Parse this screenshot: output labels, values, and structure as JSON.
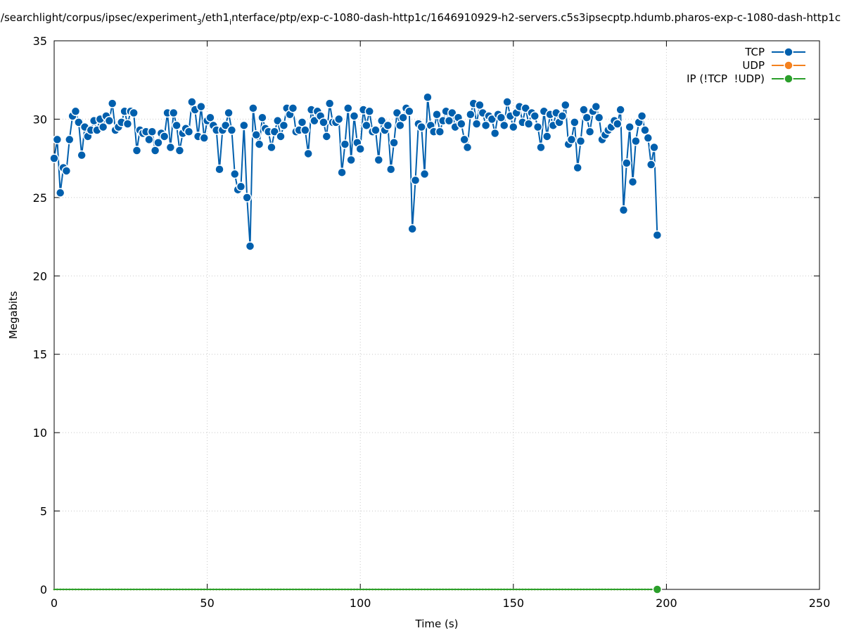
{
  "chart_data": {
    "type": "line",
    "title": [
      "/searchlight/corpus/ipsec/experiment",
      "3",
      "/eth1",
      "i",
      "nterface/ptp/exp-c-1080-dash-http1c/1646910929-h2-servers.c5s3ipsecptp.hdumb.pharos-exp-c-1080-dash-http1c"
    ],
    "xlabel": "Time (s)",
    "ylabel": "Megabits",
    "xlim": [
      0,
      250
    ],
    "xticks": [
      0,
      50,
      100,
      150,
      200,
      250
    ],
    "ylim": [
      0,
      35
    ],
    "yticks": [
      0,
      5,
      10,
      15,
      20,
      25,
      30,
      35
    ],
    "grid": true,
    "legend": "top-right",
    "x": [
      0,
      1,
      2,
      3,
      4,
      5,
      6,
      7,
      8,
      9,
      10,
      11,
      12,
      13,
      14,
      15,
      16,
      17,
      18,
      19,
      20,
      21,
      22,
      23,
      24,
      25,
      26,
      27,
      28,
      29,
      30,
      31,
      32,
      33,
      34,
      35,
      36,
      37,
      38,
      39,
      40,
      41,
      42,
      43,
      44,
      45,
      46,
      47,
      48,
      49,
      50,
      51,
      52,
      53,
      54,
      55,
      56,
      57,
      58,
      59,
      60,
      61,
      62,
      63,
      64,
      65,
      66,
      67,
      68,
      69,
      70,
      71,
      72,
      73,
      74,
      75,
      76,
      77,
      78,
      79,
      80,
      81,
      82,
      83,
      84,
      85,
      86,
      87,
      88,
      89,
      90,
      91,
      92,
      93,
      94,
      95,
      96,
      97,
      98,
      99,
      100,
      101,
      102,
      103,
      104,
      105,
      106,
      107,
      108,
      109,
      110,
      111,
      112,
      113,
      114,
      115,
      116,
      117,
      118,
      119,
      120,
      121,
      122,
      123,
      124,
      125,
      126,
      127,
      128,
      129,
      130,
      131,
      132,
      133,
      134,
      135,
      136,
      137,
      138,
      139,
      140,
      141,
      142,
      143,
      144,
      145,
      146,
      147,
      148,
      149,
      150,
      151,
      152,
      153,
      154,
      155,
      156,
      157,
      158,
      159,
      160,
      161,
      162,
      163,
      164,
      165,
      166,
      167,
      168,
      169,
      170,
      171,
      172,
      173,
      174,
      175,
      176,
      177,
      178,
      179,
      180,
      181,
      182,
      183,
      184,
      185,
      186,
      187,
      188,
      189,
      190,
      191,
      192,
      193,
      194,
      195,
      196,
      197
    ],
    "series": [
      {
        "name": "TCP",
        "color": "#005fad",
        "values": [
          27.5,
          28.7,
          25.3,
          26.9,
          26.7,
          28.7,
          30.2,
          30.5,
          29.8,
          27.7,
          29.5,
          28.9,
          29.3,
          29.9,
          29.3,
          30.0,
          29.5,
          30.2,
          29.9,
          31.0,
          29.3,
          29.5,
          29.8,
          30.5,
          29.7,
          30.5,
          30.4,
          28.0,
          29.3,
          29.1,
          29.2,
          28.7,
          29.2,
          28.0,
          28.5,
          29.1,
          28.9,
          30.4,
          28.2,
          30.4,
          29.6,
          28.0,
          29.1,
          29.4,
          29.2,
          31.1,
          30.6,
          28.9,
          30.8,
          28.8,
          29.9,
          30.1,
          29.6,
          29.3,
          26.8,
          29.3,
          29.6,
          30.4,
          29.3,
          26.5,
          25.5,
          25.7,
          29.6,
          25.0,
          21.9,
          30.7,
          29.0,
          28.4,
          30.1,
          29.4,
          29.2,
          28.2,
          29.2,
          29.9,
          28.9,
          29.6,
          30.7,
          30.3,
          30.7,
          29.2,
          29.3,
          29.8,
          29.3,
          27.8,
          30.6,
          29.9,
          30.5,
          30.2,
          29.8,
          28.9,
          31.0,
          29.8,
          29.8,
          30.0,
          26.6,
          28.4,
          30.7,
          27.4,
          30.2,
          28.5,
          28.1,
          30.6,
          29.6,
          30.5,
          29.2,
          29.3,
          27.4,
          29.9,
          29.3,
          29.6,
          26.8,
          28.5,
          30.4,
          29.6,
          30.1,
          30.7,
          30.5,
          23.0,
          26.1,
          29.7,
          29.5,
          26.5,
          31.4,
          29.6,
          29.2,
          30.3,
          29.2,
          29.9,
          30.5,
          29.9,
          30.4,
          29.5,
          30.1,
          29.7,
          28.7,
          28.2,
          30.3,
          31.0,
          29.7,
          30.9,
          30.4,
          29.6,
          30.2,
          30.0,
          29.1,
          30.3,
          30.1,
          29.6,
          31.1,
          30.2,
          29.5,
          30.4,
          30.8,
          29.8,
          30.7,
          29.7,
          30.4,
          30.2,
          29.5,
          28.2,
          30.5,
          28.9,
          30.3,
          29.6,
          30.4,
          29.8,
          30.2,
          30.9,
          28.4,
          28.7,
          29.8,
          26.9,
          28.6,
          30.6,
          30.1,
          29.2,
          30.5,
          30.8,
          30.1,
          28.7,
          29.0,
          29.3,
          29.5,
          29.9,
          29.7,
          30.6,
          24.2,
          27.2,
          29.5,
          26.0,
          28.6,
          29.8,
          30.2,
          29.3,
          28.8,
          27.1,
          28.2,
          22.6
        ]
      },
      {
        "name": "UDP",
        "color": "#f4811e",
        "values": [
          0,
          0,
          0,
          0,
          0,
          0,
          0,
          0,
          0,
          0,
          0,
          0,
          0,
          0,
          0,
          0,
          0,
          0,
          0,
          0,
          0,
          0,
          0,
          0,
          0,
          0,
          0,
          0,
          0,
          0,
          0,
          0,
          0,
          0,
          0,
          0,
          0,
          0,
          0,
          0,
          0,
          0,
          0,
          0,
          0,
          0,
          0,
          0,
          0,
          0,
          0,
          0,
          0,
          0,
          0,
          0,
          0,
          0,
          0,
          0,
          0,
          0,
          0,
          0,
          0,
          0,
          0,
          0,
          0,
          0,
          0,
          0,
          0,
          0,
          0,
          0,
          0,
          0,
          0,
          0,
          0,
          0,
          0,
          0,
          0,
          0,
          0,
          0,
          0,
          0,
          0,
          0,
          0,
          0,
          0,
          0,
          0,
          0,
          0,
          0,
          0,
          0,
          0,
          0,
          0,
          0,
          0,
          0,
          0,
          0,
          0,
          0,
          0,
          0,
          0,
          0,
          0,
          0,
          0,
          0,
          0,
          0,
          0,
          0,
          0,
          0,
          0,
          0,
          0,
          0,
          0,
          0,
          0,
          0,
          0,
          0,
          0,
          0,
          0,
          0,
          0,
          0,
          0,
          0,
          0,
          0,
          0,
          0,
          0,
          0,
          0,
          0,
          0,
          0,
          0,
          0,
          0,
          0,
          0,
          0,
          0,
          0,
          0,
          0,
          0,
          0,
          0,
          0,
          0,
          0,
          0,
          0,
          0,
          0,
          0,
          0,
          0,
          0,
          0,
          0,
          0,
          0,
          0,
          0,
          0,
          0,
          0,
          0,
          0,
          0,
          0,
          0,
          0,
          0,
          0,
          0,
          0,
          0
        ]
      },
      {
        "name": "IP (!TCP  !UDP)",
        "color": "#2b9f2b",
        "values": [
          0,
          0,
          0,
          0,
          0,
          0,
          0,
          0,
          0,
          0,
          0,
          0,
          0,
          0,
          0,
          0,
          0,
          0,
          0,
          0,
          0,
          0,
          0,
          0,
          0,
          0,
          0,
          0,
          0,
          0,
          0,
          0,
          0,
          0,
          0,
          0,
          0,
          0,
          0,
          0,
          0,
          0,
          0,
          0,
          0,
          0,
          0,
          0,
          0,
          0,
          0,
          0,
          0,
          0,
          0,
          0,
          0,
          0,
          0,
          0,
          0,
          0,
          0,
          0,
          0,
          0,
          0,
          0,
          0,
          0,
          0,
          0,
          0,
          0,
          0,
          0,
          0,
          0,
          0,
          0,
          0,
          0,
          0,
          0,
          0,
          0,
          0,
          0,
          0,
          0,
          0,
          0,
          0,
          0,
          0,
          0,
          0,
          0,
          0,
          0,
          0,
          0,
          0,
          0,
          0,
          0,
          0,
          0,
          0,
          0,
          0,
          0,
          0,
          0,
          0,
          0,
          0,
          0,
          0,
          0,
          0,
          0,
          0,
          0,
          0,
          0,
          0,
          0,
          0,
          0,
          0,
          0,
          0,
          0,
          0,
          0,
          0,
          0,
          0,
          0,
          0,
          0,
          0,
          0,
          0,
          0,
          0,
          0,
          0,
          0,
          0,
          0,
          0,
          0,
          0,
          0,
          0,
          0,
          0,
          0,
          0,
          0,
          0,
          0,
          0,
          0,
          0,
          0,
          0,
          0,
          0,
          0,
          0,
          0,
          0,
          0,
          0,
          0,
          0,
          0,
          0,
          0,
          0,
          0,
          0,
          0,
          0,
          0,
          0,
          0,
          0,
          0,
          0,
          0,
          0,
          0,
          0,
          0
        ]
      }
    ]
  }
}
